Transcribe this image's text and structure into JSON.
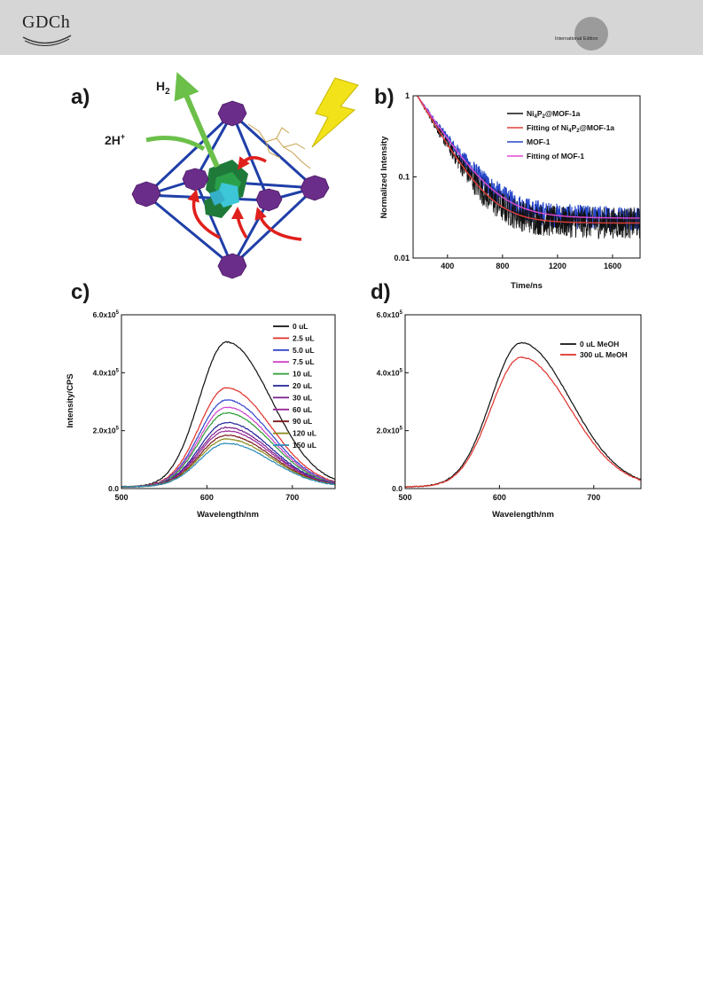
{
  "header": {
    "logo_text": "GDCh",
    "edition_text": "International Edition"
  },
  "panel_a": {
    "letter": "a)",
    "h2_label": "H",
    "h2_sub": "2",
    "proton_label": "2H",
    "proton_sup": "+",
    "colors": {
      "node": "#6b2d8a",
      "frame": "#1f3fa8",
      "cluster": "#1f7a3a",
      "core": "#3cc6d8",
      "arrow_green": "#6cc04a",
      "arrow_red": "#e0201c",
      "bolt": "#f2e21a"
    }
  },
  "chart_data": [
    {
      "panel": "b)",
      "type": "line",
      "xlabel": "Time/ns",
      "ylabel": "Normalized Intensity",
      "xlim": [
        150,
        1800
      ],
      "ylim": [
        0.01,
        1
      ],
      "yscale": "log",
      "x_ticks": [
        400,
        800,
        1200,
        1600
      ],
      "y_ticks": [
        {
          "value": 1,
          "label": "1"
        },
        {
          "value": 0.1,
          "label": "0.1"
        },
        {
          "value": 0.01,
          "label": "0.01"
        }
      ],
      "legend_position": "top-right",
      "series": [
        {
          "name_parts": [
            "Ni",
            "4",
            "P",
            "2",
            "@MOF-1a"
          ],
          "color": "#111111",
          "kind": "noisy",
          "tau": 150,
          "floor": 0.027,
          "noise": 0.28
        },
        {
          "name_parts": [
            "Fitting of Ni",
            "4",
            "P",
            "2",
            "@MOF-1a"
          ],
          "color": "#e0403a",
          "kind": "fit",
          "tau": 150,
          "floor": 0.027
        },
        {
          "name_parts": [
            "MOF-1"
          ],
          "color": "#2646c8",
          "kind": "noisy",
          "tau": 170,
          "floor": 0.031,
          "noise": 0.22
        },
        {
          "name_parts": [
            "Fitting of MOF-1"
          ],
          "color": "#e14ad2",
          "kind": "fit",
          "tau": 170,
          "floor": 0.031
        }
      ]
    },
    {
      "panel": "c)",
      "type": "line",
      "xlabel": "Wavelength/nm",
      "ylabel": "Intensity/CPS",
      "xlim": [
        500,
        750
      ],
      "ylim": [
        0,
        600000
      ],
      "x_ticks": [
        500,
        600,
        700
      ],
      "y_ticks": [
        {
          "value": 0,
          "label": "0.0",
          "exp": ""
        },
        {
          "value": 200000,
          "label": "2.0x10",
          "exp": "5"
        },
        {
          "value": 400000,
          "label": "4.0x10",
          "exp": "5"
        },
        {
          "value": 600000,
          "label": "6.0x10",
          "exp": "5"
        }
      ],
      "peak_nm": 623,
      "legend_position": "top-right",
      "series": [
        {
          "name": "0 uL",
          "color": "#111111",
          "peak": 500000
        },
        {
          "name": "2.5 uL",
          "color": "#e0302a",
          "peak": 342000
        },
        {
          "name": "5.0 uL",
          "color": "#3344cc",
          "peak": 300000
        },
        {
          "name": "7.5 uL",
          "color": "#d040c8",
          "peak": 275000
        },
        {
          "name": "10 uL",
          "color": "#2c9c34",
          "peak": 255000
        },
        {
          "name": "20 uL",
          "color": "#22239a",
          "peak": 222000
        },
        {
          "name": "30 uL",
          "color": "#7a1f8a",
          "peak": 205000
        },
        {
          "name": "60 uL",
          "color": "#9a2a9a",
          "peak": 193000
        },
        {
          "name": "90 uL",
          "color": "#7a1a1a",
          "peak": 178000
        },
        {
          "name": "120 uL",
          "color": "#8a8a1a",
          "peak": 165000
        },
        {
          "name": "150 uL",
          "color": "#2a8ab8",
          "peak": 150000
        }
      ]
    },
    {
      "panel": "d)",
      "type": "line",
      "xlabel": "Wavelength/nm",
      "ylabel": "",
      "xlim": [
        500,
        750
      ],
      "ylim": [
        0,
        600000
      ],
      "x_ticks": [
        500,
        600,
        700
      ],
      "y_ticks": [
        {
          "value": 0,
          "label": "0.0",
          "exp": ""
        },
        {
          "value": 200000,
          "label": "2.0x10",
          "exp": "5"
        },
        {
          "value": 400000,
          "label": "4.0x10",
          "exp": "5"
        },
        {
          "value": 600000,
          "label": "6.0x10",
          "exp": "5"
        }
      ],
      "peak_nm": 623,
      "legend_position": "top-right",
      "series": [
        {
          "name": "0 uL MeOH",
          "color": "#111111",
          "peak": 497000
        },
        {
          "name": "300 uL MeOH",
          "color": "#e0302a",
          "peak": 447000
        }
      ]
    }
  ]
}
